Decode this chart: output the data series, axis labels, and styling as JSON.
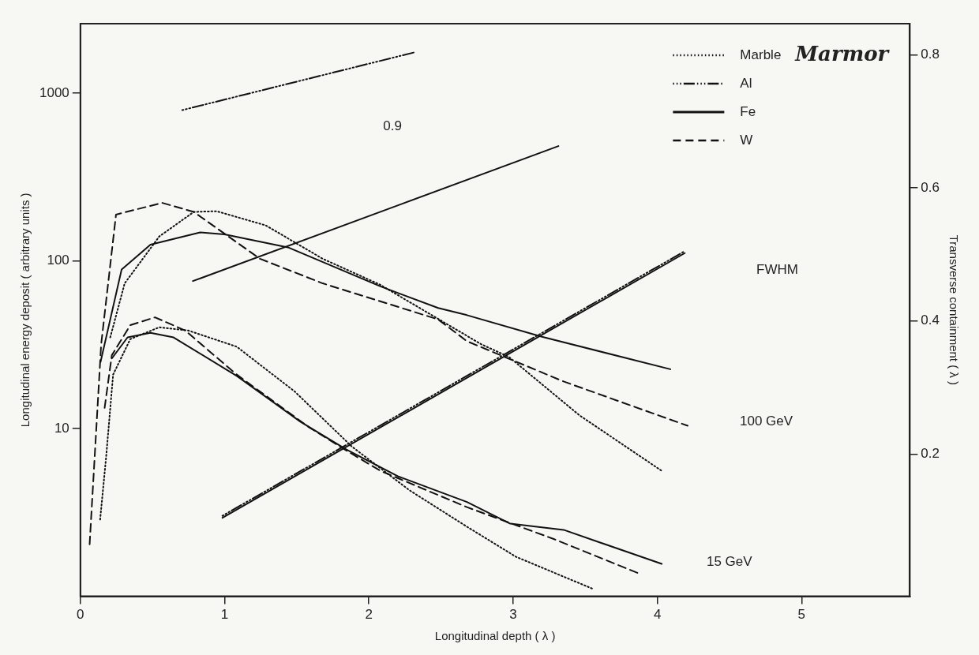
{
  "chart_data": {
    "type": "line",
    "xlabel": "Longitudinal depth ( λ )",
    "ylabel": "Longitudinal energy deposit ( arbitrary units )",
    "y2label": "Transverse containment ( λ )",
    "xlim": [
      0,
      5.75
    ],
    "xticks": [
      0,
      1,
      2,
      3,
      4,
      5
    ],
    "ylim": [
      1,
      2600
    ],
    "yticks": [
      10,
      100,
      1000
    ],
    "y2lim": [
      -0.014,
      0.847
    ],
    "y2ticks": [
      0.2,
      0.4,
      0.6,
      0.8
    ],
    "log": "y",
    "grid": false,
    "legend": "top right",
    "marker": "none",
    "series": [
      {
        "name": "Marble",
        "color": "#111111",
        "line_style": "dotted",
        "x": [
          0.207,
          0.307,
          0.547,
          0.786,
          0.944,
          1.285,
          1.68,
          2.08,
          2.78,
          2.97,
          3.46,
          4.03
        ],
        "values": [
          35,
          73.5,
          140,
          196,
          198,
          163,
          103,
          72,
          31.8,
          26.8,
          12,
          5.6
        ]
      },
      {
        "name": "Al",
        "color": "#111111",
        "line_style": "dashdot",
        "axis": "y2",
        "x": [
          0.706,
          2.318
        ],
        "values": [
          0.717,
          0.804
        ]
      },
      {
        "name": "Fe",
        "color": "#111111",
        "line_style": "solid",
        "x": [
          0.14,
          0.286,
          0.486,
          0.83,
          1.0,
          1.445,
          2.08,
          2.48,
          2.68,
          3.2,
          4.09
        ],
        "values": [
          25,
          89,
          125,
          148,
          144,
          120,
          70.5,
          52.4,
          47.5,
          35.3,
          22.6
        ]
      },
      {
        "name": "W",
        "color": "#111111",
        "line_style": "dashed",
        "x": [
          0.064,
          0.144,
          0.247,
          0.567,
          0.786,
          1.245,
          1.68,
          2.48,
          2.68,
          3.35,
          4.21
        ],
        "values": [
          2.04,
          31.8,
          189,
          222,
          196,
          103,
          73.5,
          44.8,
          33.2,
          19.1,
          10.4
        ]
      },
      {
        "color": "#111111",
        "line_style": "dotted",
        "x": [
          0.137,
          0.178,
          0.227,
          0.346,
          0.547,
          0.746,
          1.084,
          1.484,
          1.883,
          2.283,
          2.68,
          3.02,
          3.55
        ],
        "values": [
          2.87,
          6.7,
          21,
          34.2,
          40.2,
          38.5,
          30.8,
          16.7,
          7.8,
          4.28,
          2.6,
          1.72,
          1.11
        ]
      },
      {
        "color": "#111111",
        "line_style": "solid",
        "x": [
          0.218,
          0.327,
          0.486,
          0.646,
          1.084,
          1.525,
          1.844,
          2.2,
          2.68,
          2.98,
          3.35,
          4.03
        ],
        "values": [
          26.2,
          35,
          37.3,
          35,
          20.6,
          11,
          7.5,
          5.2,
          3.65,
          2.71,
          2.49,
          1.56
        ]
      },
      {
        "color": "#111111",
        "line_style": "dashed",
        "x": [
          0.168,
          0.218,
          0.346,
          0.517,
          0.726,
          1.084,
          1.584,
          1.844,
          2.08,
          2.68,
          3.285,
          3.87
        ],
        "values": [
          13.3,
          27.4,
          41.4,
          46.1,
          38.5,
          21,
          10.2,
          7.4,
          5.6,
          3.4,
          2.19,
          1.37
        ]
      },
      {
        "color": "#111111",
        "line_style": "solid",
        "axis": "y2",
        "x": [
          0.78,
          3.314
        ],
        "values": [
          0.46,
          0.663
        ]
      },
      {
        "color": "#111111",
        "line_style": "dashdot",
        "axis": "y2",
        "x": [
          0.985,
          4.19
        ],
        "values": [
          0.107,
          0.505
        ]
      },
      {
        "color": "#111111",
        "line_style": "solid",
        "axis": "y2",
        "x": [
          0.985,
          4.19
        ],
        "values": [
          0.104,
          0.502
        ]
      }
    ],
    "annotations": [
      "0.9",
      "FWHM",
      "100 GeV",
      "15 GeV",
      "Marmor"
    ]
  }
}
